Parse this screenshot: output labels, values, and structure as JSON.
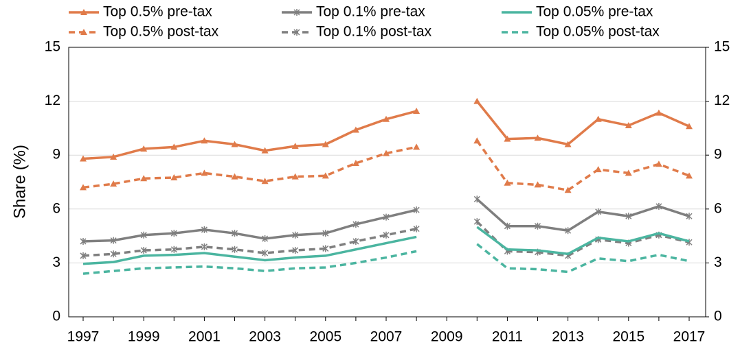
{
  "chart_data": {
    "type": "line",
    "y_label": "Share (%)",
    "categories": [
      "1997",
      null,
      "1999",
      null,
      "2001",
      null,
      "2003",
      null,
      "2005",
      null,
      "2007",
      null,
      "2009",
      null,
      "2011",
      null,
      "2013",
      null,
      "2015",
      null,
      "2017"
    ],
    "series": [
      {
        "name": "Top 0.5% pre-tax",
        "color": "#e07b4a",
        "dash": false,
        "marker": "triangle",
        "values": [
          8.8,
          8.9,
          9.35,
          9.45,
          9.8,
          9.6,
          9.25,
          9.5,
          9.6,
          10.4,
          11.0,
          11.45,
          null,
          12.0,
          9.9,
          9.95,
          9.6,
          11.0,
          10.65,
          11.35,
          10.6
        ]
      },
      {
        "name": "Top 0.5% post-tax",
        "color": "#e07b4a",
        "dash": true,
        "marker": "triangle",
        "values": [
          7.2,
          7.4,
          7.7,
          7.75,
          8.0,
          7.8,
          7.55,
          7.8,
          7.85,
          8.55,
          9.1,
          9.45,
          null,
          9.8,
          7.45,
          7.35,
          7.05,
          8.2,
          8.0,
          8.5,
          7.85
        ]
      },
      {
        "name": "Top 0.1% pre-tax",
        "color": "#7f7f7f",
        "dash": false,
        "marker": "star",
        "values": [
          4.2,
          4.25,
          4.55,
          4.65,
          4.85,
          4.65,
          4.35,
          4.55,
          4.65,
          5.15,
          5.55,
          5.95,
          null,
          6.55,
          5.05,
          5.05,
          4.8,
          5.85,
          5.6,
          6.15,
          5.6
        ]
      },
      {
        "name": "Top 0.1% post-tax",
        "color": "#7f7f7f",
        "dash": true,
        "marker": "star",
        "values": [
          3.4,
          3.5,
          3.7,
          3.75,
          3.9,
          3.75,
          3.55,
          3.7,
          3.8,
          4.2,
          4.55,
          4.9,
          null,
          5.3,
          3.65,
          3.6,
          3.4,
          4.3,
          4.1,
          4.55,
          4.15
        ]
      },
      {
        "name": "Top 0.05% pre-tax",
        "color": "#4bb5a0",
        "dash": false,
        "marker": "none",
        "values": [
          2.95,
          3.05,
          3.4,
          3.45,
          3.55,
          3.35,
          3.15,
          3.3,
          3.4,
          3.75,
          4.1,
          4.45,
          null,
          5.0,
          3.75,
          3.7,
          3.5,
          4.4,
          4.2,
          4.65,
          4.2
        ]
      },
      {
        "name": "Top 0.05% post-tax",
        "color": "#4bb5a0",
        "dash": true,
        "marker": "none",
        "values": [
          2.4,
          2.55,
          2.7,
          2.75,
          2.8,
          2.7,
          2.55,
          2.7,
          2.75,
          3.0,
          3.3,
          3.65,
          null,
          4.05,
          2.7,
          2.65,
          2.5,
          3.25,
          3.1,
          3.45,
          3.1
        ]
      }
    ],
    "ylim": [
      0,
      15
    ],
    "yticks": [
      0,
      3,
      6,
      9,
      12,
      15
    ],
    "y2lim": [
      0,
      15
    ],
    "y2ticks": [
      0,
      3,
      6,
      9,
      12,
      15
    ],
    "grid": true
  }
}
